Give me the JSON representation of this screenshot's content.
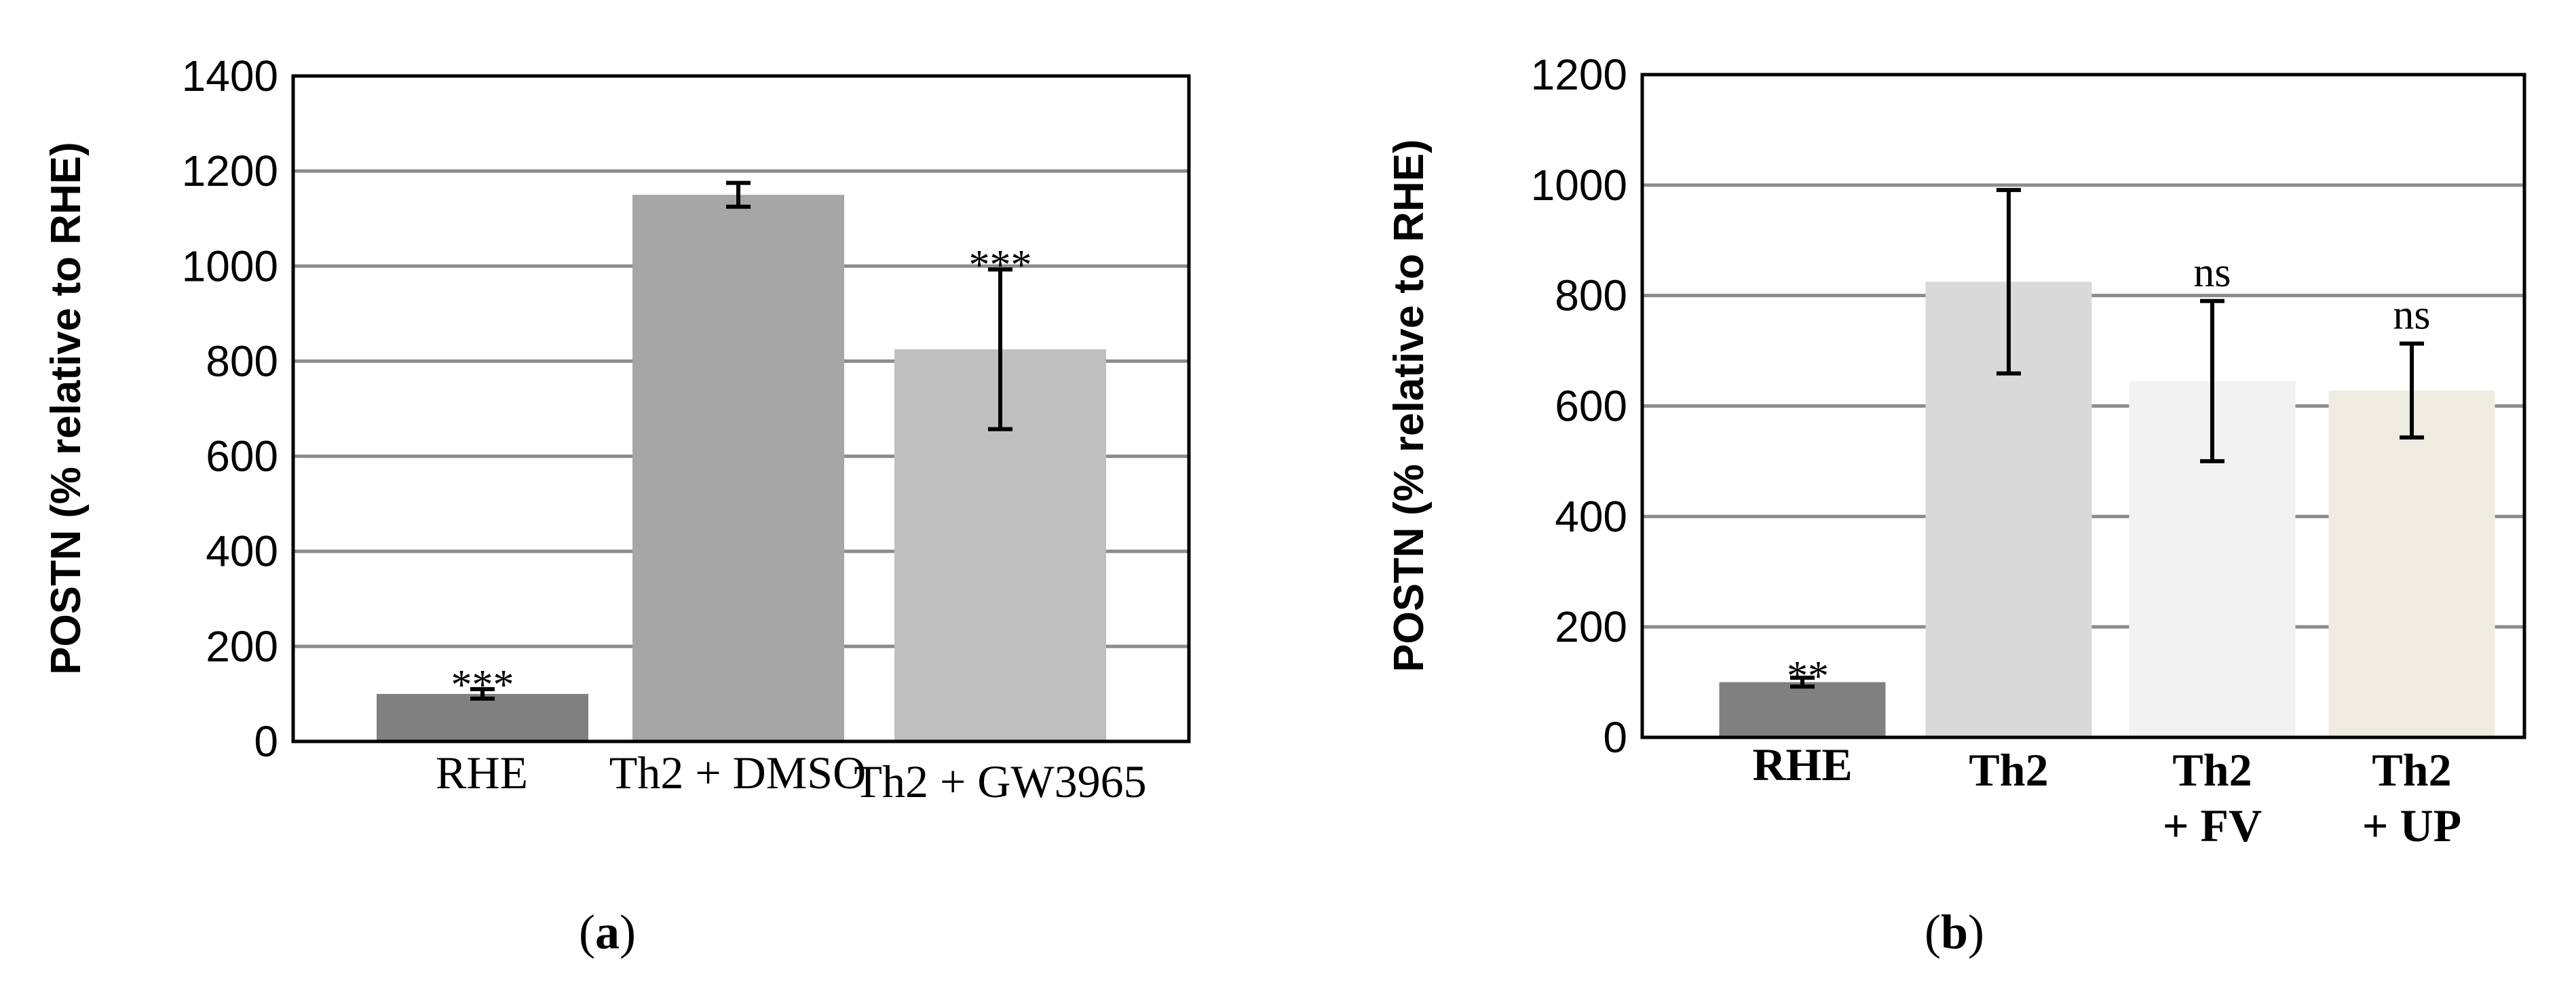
{
  "chart_data": [
    {
      "type": "bar",
      "panel_label": "a",
      "ylabel": "POSTN (% relative to RHE)",
      "ylim": [
        0,
        1400
      ],
      "yticks": [
        0,
        200,
        400,
        600,
        800,
        1000,
        1200,
        1400
      ],
      "grid": true,
      "categories": [
        "RHE",
        "Th2 + DMSO",
        "Th2 + GW3965"
      ],
      "values": [
        100,
        1150,
        825
      ],
      "errors": [
        10,
        25,
        168
      ],
      "significance": [
        "***",
        "",
        "***"
      ],
      "colors": [
        "#808080",
        "#a6a6a6",
        "#bfbfbf"
      ]
    },
    {
      "type": "bar",
      "panel_label": "b",
      "ylabel": "POSTN (% relative to RHE)",
      "ylim": [
        0,
        1200
      ],
      "yticks": [
        0,
        200,
        400,
        600,
        800,
        1000,
        1200
      ],
      "grid": true,
      "categories": [
        [
          "RHE"
        ],
        [
          "Th2"
        ],
        [
          "Th2",
          "+ FV"
        ],
        [
          "Th2",
          "+ UP"
        ]
      ],
      "values": [
        100,
        825,
        645,
        628
      ],
      "errors": [
        8,
        166,
        145,
        85
      ],
      "significance": [
        "**",
        "",
        "ns",
        "ns"
      ],
      "colors": [
        "#808080",
        "#d9d9d9",
        "#f2f2f2",
        "#eeece1"
      ]
    }
  ]
}
